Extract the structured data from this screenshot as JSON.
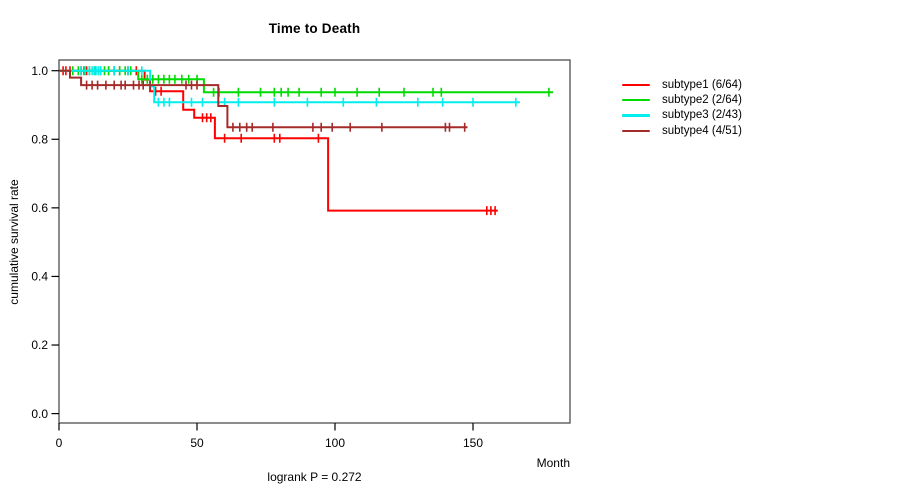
{
  "header": {
    "title": "Time to Death"
  },
  "axes": {
    "ylabel": "cumulative survival rate",
    "xlabel": "Month",
    "footnote": "logrank P = 0.272"
  },
  "legend": {
    "items": [
      {
        "label": "subtype1 (6/64)",
        "color": "#ff0000"
      },
      {
        "label": "subtype2 (2/64)",
        "color": "#00db00"
      },
      {
        "label": "subtype3 (2/43)",
        "color": "#00eeee"
      },
      {
        "label": "subtype4 (4/51)",
        "color": "#a52a2a"
      }
    ]
  },
  "chart_data": {
    "type": "line",
    "subtype": "kaplan-meier-step",
    "title": "Time to Death",
    "xlabel": "Month",
    "ylabel": "cumulative survival rate",
    "annotation": "logrank P = 0.272",
    "p_value": "0.272",
    "xlim": [
      0,
      185
    ],
    "ylim": [
      0,
      1.04
    ],
    "xticks": [
      0,
      50,
      100,
      150
    ],
    "yticks": [
      0.0,
      0.2,
      0.4,
      0.6,
      0.8,
      1.0
    ],
    "grid": false,
    "legend_position": "right",
    "series": [
      {
        "name": "subtype1",
        "legend_label": "subtype1 (6/64)",
        "events": "6/64",
        "color": "#ff0000",
        "points": [
          [
            0,
            1.0
          ],
          [
            31,
            0.974
          ],
          [
            33,
            0.94
          ],
          [
            45,
            0.886
          ],
          [
            49,
            0.863
          ],
          [
            56.5,
            0.803
          ],
          [
            97.5,
            0.592
          ],
          [
            159,
            0.592
          ]
        ],
        "censor_marks": [
          [
            1.5,
            1.0
          ],
          [
            2.5,
            1.0
          ],
          [
            4,
            1.0
          ],
          [
            8,
            1.0
          ],
          [
            10,
            1.0
          ],
          [
            15,
            1.0
          ],
          [
            18,
            1.0
          ],
          [
            20,
            1.0
          ],
          [
            22,
            1.0
          ],
          [
            25,
            1.0
          ],
          [
            28,
            1.0
          ],
          [
            35,
            0.94
          ],
          [
            37,
            0.94
          ],
          [
            52,
            0.863
          ],
          [
            53.5,
            0.863
          ],
          [
            55,
            0.863
          ],
          [
            60,
            0.803
          ],
          [
            66,
            0.803
          ],
          [
            78,
            0.803
          ],
          [
            80,
            0.803
          ],
          [
            94,
            0.803
          ],
          [
            155,
            0.592
          ],
          [
            156.5,
            0.592
          ],
          [
            158,
            0.592
          ]
        ]
      },
      {
        "name": "subtype2",
        "legend_label": "subtype2 (2/64)",
        "events": "2/64",
        "color": "#00db00",
        "points": [
          [
            0,
            1.0
          ],
          [
            28.7,
            0.975
          ],
          [
            52.5,
            0.937
          ],
          [
            179,
            0.937
          ]
        ],
        "censor_marks": [
          [
            5,
            1.0
          ],
          [
            7,
            1.0
          ],
          [
            9,
            1.0
          ],
          [
            11,
            1.0
          ],
          [
            13,
            1.0
          ],
          [
            15,
            1.0
          ],
          [
            16.5,
            1.0
          ],
          [
            18,
            1.0
          ],
          [
            20,
            1.0
          ],
          [
            22,
            1.0
          ],
          [
            24,
            1.0
          ],
          [
            26,
            1.0
          ],
          [
            30,
            0.975
          ],
          [
            32,
            0.975
          ],
          [
            34,
            0.975
          ],
          [
            36,
            0.975
          ],
          [
            38,
            0.975
          ],
          [
            40,
            0.975
          ],
          [
            42,
            0.975
          ],
          [
            44.5,
            0.975
          ],
          [
            47,
            0.975
          ],
          [
            50,
            0.975
          ],
          [
            56,
            0.937
          ],
          [
            58,
            0.937
          ],
          [
            65,
            0.937
          ],
          [
            73,
            0.937
          ],
          [
            78,
            0.937
          ],
          [
            80.5,
            0.937
          ],
          [
            83,
            0.937
          ],
          [
            87,
            0.937
          ],
          [
            95,
            0.937
          ],
          [
            100,
            0.937
          ],
          [
            108,
            0.937
          ],
          [
            116,
            0.937
          ],
          [
            125,
            0.937
          ],
          [
            135.5,
            0.937
          ],
          [
            138.5,
            0.937
          ],
          [
            177.5,
            0.937
          ]
        ]
      },
      {
        "name": "subtype3",
        "legend_label": "subtype3 (2/43)",
        "events": "2/43",
        "color": "#00eeee",
        "points": [
          [
            0,
            1.0
          ],
          [
            33,
            0.954
          ],
          [
            34.5,
            0.908
          ],
          [
            167,
            0.908
          ]
        ],
        "censor_marks": [
          [
            8,
            1.0
          ],
          [
            9.5,
            1.0
          ],
          [
            11,
            1.0
          ],
          [
            12,
            1.0
          ],
          [
            12.7,
            1.0
          ],
          [
            13.4,
            1.0
          ],
          [
            14.2,
            1.0
          ],
          [
            15,
            1.0
          ],
          [
            20,
            1.0
          ],
          [
            25,
            1.0
          ],
          [
            30,
            1.0
          ],
          [
            36,
            0.908
          ],
          [
            38,
            0.908
          ],
          [
            40,
            0.908
          ],
          [
            48,
            0.908
          ],
          [
            52,
            0.908
          ],
          [
            60,
            0.908
          ],
          [
            65,
            0.908
          ],
          [
            78,
            0.908
          ],
          [
            90,
            0.908
          ],
          [
            103,
            0.908
          ],
          [
            115,
            0.908
          ],
          [
            130,
            0.908
          ],
          [
            139,
            0.908
          ],
          [
            150,
            0.908
          ],
          [
            165.5,
            0.908
          ]
        ]
      },
      {
        "name": "subtype4",
        "legend_label": "subtype4 (4/51)",
        "events": "4/51",
        "color": "#a52a2a",
        "points": [
          [
            0,
            1.0
          ],
          [
            4,
            0.98
          ],
          [
            8,
            0.958
          ],
          [
            57.7,
            0.897
          ],
          [
            61,
            0.835
          ],
          [
            148,
            0.835
          ]
        ],
        "censor_marks": [
          [
            10,
            0.958
          ],
          [
            12,
            0.958
          ],
          [
            14,
            0.958
          ],
          [
            17,
            0.958
          ],
          [
            20,
            0.958
          ],
          [
            22.5,
            0.958
          ],
          [
            24,
            0.958
          ],
          [
            27,
            0.958
          ],
          [
            29,
            0.958
          ],
          [
            30.5,
            0.958
          ],
          [
            33,
            0.958
          ],
          [
            46,
            0.958
          ],
          [
            48,
            0.958
          ],
          [
            50,
            0.958
          ],
          [
            63,
            0.835
          ],
          [
            65.5,
            0.835
          ],
          [
            68,
            0.835
          ],
          [
            70,
            0.835
          ],
          [
            77.5,
            0.835
          ],
          [
            92,
            0.835
          ],
          [
            95,
            0.835
          ],
          [
            99,
            0.835
          ],
          [
            105.5,
            0.835
          ],
          [
            117,
            0.835
          ],
          [
            140,
            0.835
          ],
          [
            141.5,
            0.835
          ],
          [
            147,
            0.835
          ]
        ]
      }
    ]
  }
}
